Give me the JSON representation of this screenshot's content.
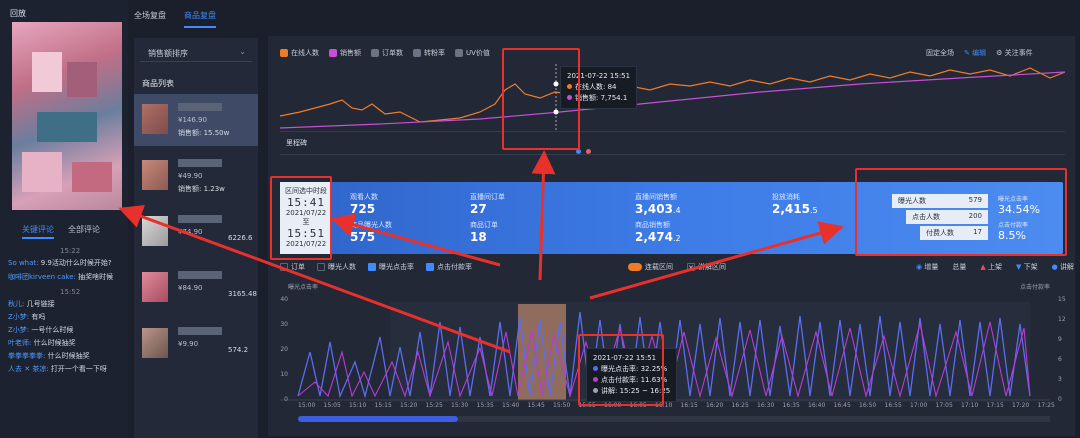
{
  "left_panel": {
    "title": "回放",
    "comment_tabs": [
      "关键评论",
      "全部评论"
    ],
    "comments": [
      {
        "time": "15:22"
      },
      {
        "user": "So what:",
        "text": "9.9活动什么时候开始?"
      },
      {
        "user": "咖啡团kirveen cake:",
        "text": "抽奖啥时候"
      },
      {
        "time": "15:52"
      },
      {
        "user": "秋儿:",
        "text": "几号链接"
      },
      {
        "user": "Z小梦:",
        "text": "有吗"
      },
      {
        "user": "Z小梦:",
        "text": "一号什么时候"
      },
      {
        "user": "叶老师:",
        "text": "什么时候抽奖"
      },
      {
        "user": "拳拳拳拳拳:",
        "text": "什么时候抽奖"
      },
      {
        "user": "人去 ✕ 茶凉:",
        "text": "打开一个看一下呀"
      }
    ]
  },
  "nav": {
    "tabs": [
      "全场复盘",
      "商品复盘"
    ],
    "active": 1
  },
  "product_panel": {
    "sort_label": "销售额排序",
    "list_title": "商品列表",
    "products": [
      {
        "price": "¥146.90",
        "sales": "销售额: 15.50w"
      },
      {
        "price": "¥49.90",
        "sales": "销售额: 1.23w"
      },
      {
        "price": "¥74.90",
        "sales": "6226.6"
      },
      {
        "price": "¥84.90",
        "sales": "3165.48"
      },
      {
        "price": "¥9.90",
        "sales": "574.2"
      }
    ]
  },
  "main": {
    "legend": [
      {
        "label": "在线人数",
        "color": "#f07c28"
      },
      {
        "label": "销售额",
        "color": "#c84fd8"
      },
      {
        "label": "订单数",
        "color": "#6b7385"
      },
      {
        "label": "转粉率",
        "color": "#6b7385"
      },
      {
        "label": "UV价值",
        "color": "#6b7385"
      }
    ],
    "top_actions": [
      "固定全场",
      "编辑",
      "关注事件"
    ],
    "milestone_label": "里程碑",
    "tooltip_top": {
      "time": "2021-07-22 15:51",
      "line1": "在线人数: 84",
      "line2": "销售额: 7,754.1"
    },
    "stats": {
      "range_title": "区间选中时段",
      "start_time": "15:41",
      "start_date": "2021/07/22",
      "to": "至",
      "end_time": "15:51",
      "end_date": "2021/07/22",
      "items": [
        {
          "label": "观看人数",
          "value": "725"
        },
        {
          "label": "直播间订单",
          "value": "27"
        },
        {
          "label": "直播间销售额",
          "value": "3,403",
          "dec": ".4"
        },
        {
          "label": "投放消耗",
          "value": "2,415",
          "dec": ".5"
        },
        {
          "label": "商品曝光人数",
          "value": "575"
        },
        {
          "label": "商品订单",
          "value": "18"
        },
        {
          "label": "商品销售额",
          "value": "2,474",
          "dec": ".2"
        }
      ],
      "funnel": [
        {
          "label": "曝光人数",
          "value": "579"
        },
        {
          "label": "点击人数",
          "value": "200"
        },
        {
          "label": "付费人数",
          "value": "17"
        }
      ],
      "rates": [
        {
          "label": "曝光点击率",
          "value": "34.54%"
        },
        {
          "label": "点击付款率",
          "value": "8.5%"
        }
      ]
    },
    "checks": [
      {
        "label": "订单",
        "on": false
      },
      {
        "label": "曝光人数",
        "on": false
      },
      {
        "label": "曝光点击率",
        "on": true
      },
      {
        "label": "点击付款率",
        "on": true
      }
    ],
    "toggles": [
      "连载区间",
      "讲解区间"
    ],
    "right_controls": [
      "增量",
      "总量",
      "上架",
      "下架",
      "讲解"
    ],
    "left_axis_title": "曝光点击率",
    "right_axis_title": "点击付款率",
    "tooltip_bottom": {
      "time": "2021-07-22 15:51",
      "line1": "曝光点击率: 32.25%",
      "line2": "点击付款率: 11.63%",
      "line3": "讲解: 15:25 ~ 16:25"
    },
    "x_ticks": [
      "15:00",
      "15:05",
      "15:10",
      "15:15",
      "15:20",
      "15:25",
      "15:30",
      "15:35",
      "15:40",
      "15:45",
      "15:50",
      "15:55",
      "16:00",
      "16:05",
      "16:10",
      "16:15",
      "16:20",
      "16:25",
      "16:30",
      "16:35",
      "16:40",
      "16:45",
      "16:50",
      "16:55",
      "17:00",
      "17:05",
      "17:10",
      "17:15",
      "17:20",
      "17:25"
    ],
    "y_left": [
      "40",
      "30",
      "20",
      "10",
      "0"
    ],
    "y_right": [
      "15",
      "12",
      "9",
      "6",
      "3",
      "0"
    ]
  }
}
